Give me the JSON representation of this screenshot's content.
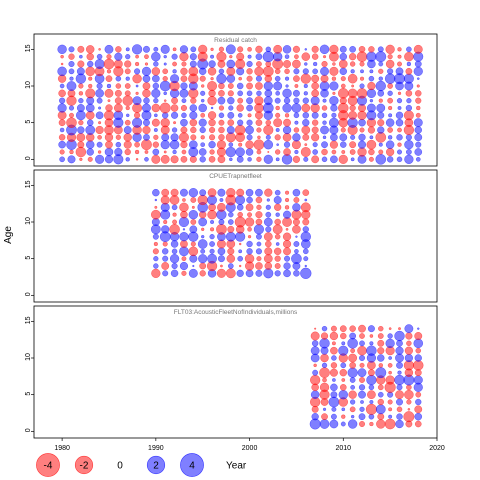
{
  "chart_data": {
    "type": "scatter",
    "variant": "bubble-residual",
    "ylabel": "Age",
    "xlabel": "",
    "xlim": [
      1977,
      2020
    ],
    "x_ticks": [
      1980,
      1990,
      2000,
      2010,
      2020
    ],
    "y_ticks": [
      0,
      5,
      10,
      15
    ],
    "colors": {
      "positive": "#0000ff",
      "negative": "#ff0000"
    },
    "panels": [
      {
        "title": "Residual catch",
        "year_range": [
          1980,
          2018
        ],
        "age_range": [
          0,
          15
        ],
        "ylim": [
          -0.5,
          16
        ]
      },
      {
        "title": "CPUETrapnetfleet",
        "year_range": [
          1990,
          2006
        ],
        "age_range": [
          3,
          14
        ],
        "ylim": [
          -0.5,
          16
        ]
      },
      {
        "title": "FLT03:AcousticFleetNofIndividuals,millions",
        "year_range": [
          2007,
          2018
        ],
        "age_range": [
          1,
          14
        ],
        "ylim": [
          -0.5,
          16
        ]
      }
    ],
    "legend": {
      "values": [
        -4,
        -2,
        0,
        2,
        4
      ],
      "labels": [
        "-4",
        "-2",
        "0",
        "2",
        "4"
      ],
      "title": "Year",
      "position": "bottom"
    }
  }
}
